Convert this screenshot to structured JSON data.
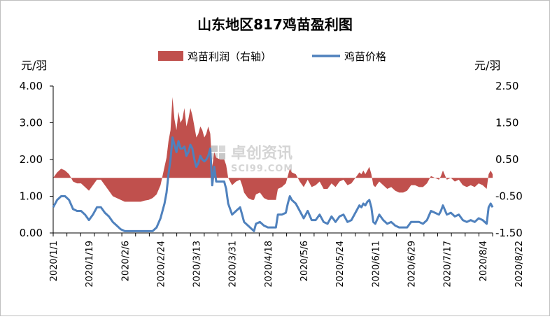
{
  "chart_data": {
    "type": "area+line",
    "title": "山东地区817鸡苗盈利图",
    "left_unit": "元/羽",
    "right_unit": "元/羽",
    "left_axis": {
      "min": 0,
      "max": 4,
      "ticks": [
        "0.00",
        "1.00",
        "2.00",
        "3.00",
        "4.00"
      ]
    },
    "right_axis": {
      "min": -1.5,
      "max": 2.5,
      "ticks": [
        "-1.50",
        "-0.50",
        "0.50",
        "1.50",
        "2.50"
      ]
    },
    "x_tick_labels": [
      "2020/1/1",
      "2020/1/19",
      "2020/2/6",
      "2020/2/24",
      "2020/3/13",
      "2020/3/31",
      "2020/4/18",
      "2020/5/6",
      "2020/5/24",
      "2020/6/11",
      "2020/6/29",
      "2020/7/17",
      "2020/8/4",
      "2020/8/22"
    ],
    "legend": [
      {
        "name": "鸡苗利润（右轴）",
        "color": "#c0504d",
        "kind": "area"
      },
      {
        "name": "鸡苗价格",
        "color": "#4f81bd",
        "kind": "line"
      }
    ],
    "series": [
      {
        "name": "鸡苗价格",
        "axis": "left",
        "color": "#4f81bd",
        "points": [
          [
            0,
            0.7
          ],
          [
            2,
            0.9
          ],
          [
            4,
            1.0
          ],
          [
            6,
            1.0
          ],
          [
            8,
            0.9
          ],
          [
            10,
            0.65
          ],
          [
            12,
            0.6
          ],
          [
            14,
            0.6
          ],
          [
            16,
            0.5
          ],
          [
            18,
            0.35
          ],
          [
            20,
            0.5
          ],
          [
            22,
            0.7
          ],
          [
            24,
            0.7
          ],
          [
            26,
            0.55
          ],
          [
            28,
            0.45
          ],
          [
            30,
            0.3
          ],
          [
            32,
            0.2
          ],
          [
            34,
            0.1
          ],
          [
            36,
            0.05
          ],
          [
            38,
            0.05
          ],
          [
            40,
            0.05
          ],
          [
            42,
            0.05
          ],
          [
            44,
            0.05
          ],
          [
            46,
            0.05
          ],
          [
            48,
            0.05
          ],
          [
            50,
            0.05
          ],
          [
            52,
            0.15
          ],
          [
            54,
            0.4
          ],
          [
            56,
            0.8
          ],
          [
            57,
            1.1
          ],
          [
            58,
            1.6
          ],
          [
            59,
            2.0
          ],
          [
            60,
            2.6
          ],
          [
            61,
            2.4
          ],
          [
            62,
            2.2
          ],
          [
            63,
            2.5
          ],
          [
            64,
            2.3
          ],
          [
            65,
            2.3
          ],
          [
            66,
            2.35
          ],
          [
            67,
            2.1
          ],
          [
            68,
            2.2
          ],
          [
            69,
            2.4
          ],
          [
            70,
            2.3
          ],
          [
            71,
            2.0
          ],
          [
            72,
            1.8
          ],
          [
            73,
            1.9
          ],
          [
            74,
            2.1
          ],
          [
            75,
            2.0
          ],
          [
            76,
            1.95
          ],
          [
            77,
            2.0
          ],
          [
            78,
            2.1
          ],
          [
            79,
            2.3
          ],
          [
            80,
            1.3
          ],
          [
            81,
            1.8
          ],
          [
            82,
            1.4
          ],
          [
            84,
            1.4
          ],
          [
            86,
            1.4
          ],
          [
            87,
            1.2
          ],
          [
            88,
            0.8
          ],
          [
            89,
            0.65
          ],
          [
            90,
            0.5
          ],
          [
            92,
            0.6
          ],
          [
            94,
            0.7
          ],
          [
            95,
            0.5
          ],
          [
            96,
            0.3
          ],
          [
            98,
            0.2
          ],
          [
            100,
            0.1
          ],
          [
            101,
            0.05
          ],
          [
            102,
            0.25
          ],
          [
            104,
            0.3
          ],
          [
            106,
            0.2
          ],
          [
            108,
            0.15
          ],
          [
            110,
            0.15
          ],
          [
            112,
            0.15
          ],
          [
            113,
            0.5
          ],
          [
            115,
            0.5
          ],
          [
            117,
            0.55
          ],
          [
            118,
            0.8
          ],
          [
            119,
            1.0
          ],
          [
            120,
            0.9
          ],
          [
            122,
            0.8
          ],
          [
            124,
            0.6
          ],
          [
            126,
            0.4
          ],
          [
            127,
            0.5
          ],
          [
            128,
            0.6
          ],
          [
            130,
            0.35
          ],
          [
            132,
            0.35
          ],
          [
            134,
            0.5
          ],
          [
            136,
            0.3
          ],
          [
            138,
            0.25
          ],
          [
            140,
            0.45
          ],
          [
            142,
            0.3
          ],
          [
            144,
            0.45
          ],
          [
            146,
            0.5
          ],
          [
            148,
            0.3
          ],
          [
            150,
            0.35
          ],
          [
            152,
            0.55
          ],
          [
            154,
            0.75
          ],
          [
            155,
            0.7
          ],
          [
            156,
            0.8
          ],
          [
            157,
            0.75
          ],
          [
            158,
            0.85
          ],
          [
            159,
            0.9
          ],
          [
            160,
            0.7
          ],
          [
            161,
            0.3
          ],
          [
            162,
            0.25
          ],
          [
            164,
            0.5
          ],
          [
            166,
            0.35
          ],
          [
            168,
            0.25
          ],
          [
            170,
            0.3
          ],
          [
            172,
            0.2
          ],
          [
            174,
            0.15
          ],
          [
            176,
            0.15
          ],
          [
            178,
            0.15
          ],
          [
            180,
            0.3
          ],
          [
            182,
            0.3
          ],
          [
            184,
            0.3
          ],
          [
            186,
            0.25
          ],
          [
            188,
            0.35
          ],
          [
            190,
            0.6
          ],
          [
            192,
            0.55
          ],
          [
            194,
            0.5
          ],
          [
            195,
            0.6
          ],
          [
            196,
            0.75
          ],
          [
            198,
            0.5
          ],
          [
            200,
            0.55
          ],
          [
            202,
            0.45
          ],
          [
            204,
            0.5
          ],
          [
            206,
            0.35
          ],
          [
            208,
            0.3
          ],
          [
            210,
            0.35
          ],
          [
            212,
            0.3
          ],
          [
            214,
            0.4
          ],
          [
            216,
            0.35
          ],
          [
            218,
            0.25
          ],
          [
            219,
            0.7
          ],
          [
            220,
            0.8
          ],
          [
            221,
            0.7
          ]
        ]
      },
      {
        "name": "鸡苗利润（右轴）",
        "axis": "right",
        "color": "#c0504d",
        "points": [
          [
            0,
            0.0
          ],
          [
            2,
            0.15
          ],
          [
            4,
            0.25
          ],
          [
            6,
            0.2
          ],
          [
            8,
            0.1
          ],
          [
            10,
            -0.1
          ],
          [
            12,
            -0.15
          ],
          [
            14,
            -0.15
          ],
          [
            16,
            -0.25
          ],
          [
            18,
            -0.35
          ],
          [
            20,
            -0.2
          ],
          [
            22,
            -0.05
          ],
          [
            24,
            -0.05
          ],
          [
            26,
            -0.2
          ],
          [
            28,
            -0.35
          ],
          [
            30,
            -0.5
          ],
          [
            32,
            -0.55
          ],
          [
            34,
            -0.6
          ],
          [
            36,
            -0.65
          ],
          [
            38,
            -0.65
          ],
          [
            40,
            -0.65
          ],
          [
            42,
            -0.65
          ],
          [
            44,
            -0.65
          ],
          [
            46,
            -0.62
          ],
          [
            48,
            -0.6
          ],
          [
            50,
            -0.55
          ],
          [
            52,
            -0.45
          ],
          [
            54,
            -0.2
          ],
          [
            56,
            0.3
          ],
          [
            57,
            0.55
          ],
          [
            58,
            1.0
          ],
          [
            59,
            1.3
          ],
          [
            60,
            2.2
          ],
          [
            61,
            1.6
          ],
          [
            62,
            1.3
          ],
          [
            63,
            1.8
          ],
          [
            64,
            1.5
          ],
          [
            65,
            1.6
          ],
          [
            66,
            1.9
          ],
          [
            67,
            1.4
          ],
          [
            68,
            1.6
          ],
          [
            69,
            1.9
          ],
          [
            70,
            1.7
          ],
          [
            71,
            1.4
          ],
          [
            72,
            1.1
          ],
          [
            73,
            1.2
          ],
          [
            74,
            1.4
          ],
          [
            75,
            1.3
          ],
          [
            76,
            1.1
          ],
          [
            77,
            1.2
          ],
          [
            78,
            1.4
          ],
          [
            79,
            1.2
          ],
          [
            80,
            0.3
          ],
          [
            81,
            0.7
          ],
          [
            82,
            0.55
          ],
          [
            84,
            0.5
          ],
          [
            86,
            0.5
          ],
          [
            87,
            0.35
          ],
          [
            88,
            0.0
          ],
          [
            89,
            -0.1
          ],
          [
            90,
            -0.2
          ],
          [
            92,
            -0.1
          ],
          [
            94,
            -0.05
          ],
          [
            95,
            -0.2
          ],
          [
            96,
            -0.4
          ],
          [
            98,
            -0.55
          ],
          [
            100,
            -0.6
          ],
          [
            101,
            -0.6
          ],
          [
            102,
            -0.45
          ],
          [
            104,
            -0.4
          ],
          [
            106,
            -0.55
          ],
          [
            108,
            -0.6
          ],
          [
            110,
            -0.6
          ],
          [
            112,
            -0.6
          ],
          [
            113,
            -0.3
          ],
          [
            115,
            -0.25
          ],
          [
            117,
            -0.15
          ],
          [
            118,
            0.05
          ],
          [
            119,
            0.25
          ],
          [
            120,
            0.15
          ],
          [
            122,
            0.1
          ],
          [
            124,
            -0.1
          ],
          [
            126,
            -0.25
          ],
          [
            127,
            -0.15
          ],
          [
            128,
            -0.05
          ],
          [
            130,
            -0.25
          ],
          [
            132,
            -0.2
          ],
          [
            134,
            -0.1
          ],
          [
            136,
            -0.3
          ],
          [
            138,
            -0.3
          ],
          [
            140,
            -0.15
          ],
          [
            142,
            -0.25
          ],
          [
            144,
            -0.1
          ],
          [
            146,
            -0.05
          ],
          [
            148,
            -0.2
          ],
          [
            150,
            -0.15
          ],
          [
            152,
            0.0
          ],
          [
            154,
            0.15
          ],
          [
            155,
            0.1
          ],
          [
            156,
            0.2
          ],
          [
            157,
            0.1
          ],
          [
            158,
            0.2
          ],
          [
            159,
            0.3
          ],
          [
            160,
            0.1
          ],
          [
            161,
            -0.2
          ],
          [
            162,
            -0.25
          ],
          [
            164,
            -0.1
          ],
          [
            166,
            -0.2
          ],
          [
            168,
            -0.3
          ],
          [
            170,
            -0.25
          ],
          [
            172,
            -0.35
          ],
          [
            174,
            -0.4
          ],
          [
            176,
            -0.4
          ],
          [
            178,
            -0.35
          ],
          [
            180,
            -0.2
          ],
          [
            182,
            -0.2
          ],
          [
            184,
            -0.25
          ],
          [
            186,
            -0.25
          ],
          [
            188,
            -0.15
          ],
          [
            190,
            0.05
          ],
          [
            192,
            0.0
          ],
          [
            194,
            -0.05
          ],
          [
            195,
            0.05
          ],
          [
            196,
            0.2
          ],
          [
            198,
            -0.05
          ],
          [
            200,
            0.0
          ],
          [
            202,
            -0.1
          ],
          [
            204,
            -0.05
          ],
          [
            206,
            -0.2
          ],
          [
            208,
            -0.25
          ],
          [
            210,
            -0.2
          ],
          [
            212,
            -0.25
          ],
          [
            214,
            -0.15
          ],
          [
            216,
            -0.2
          ],
          [
            218,
            -0.3
          ],
          [
            219,
            0.1
          ],
          [
            220,
            0.2
          ],
          [
            221,
            0.1
          ]
        ]
      }
    ],
    "watermark": {
      "brand": "卓创资讯",
      "site": "SCI99.COM"
    }
  }
}
